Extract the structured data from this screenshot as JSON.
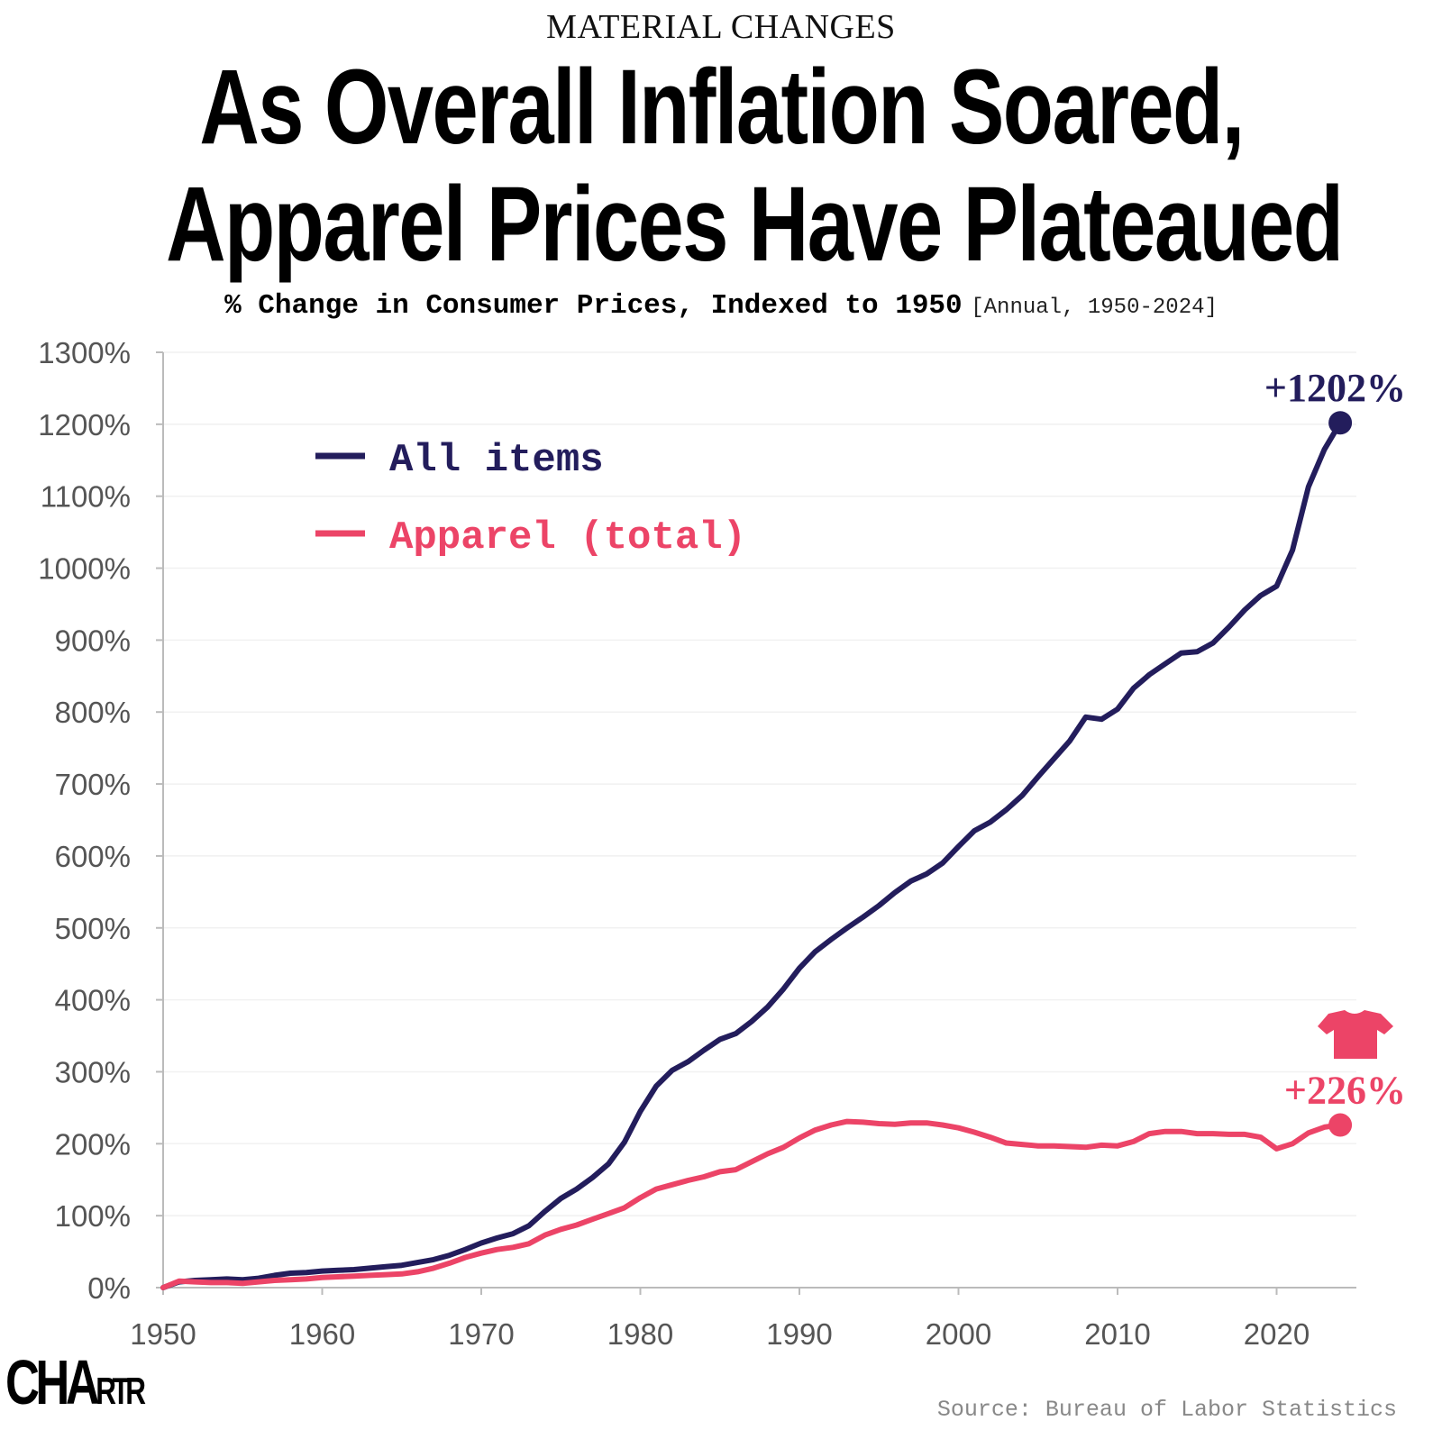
{
  "header": {
    "kicker": "MATERIAL CHANGES",
    "title_line1": "As Overall Inflation Soared,",
    "title_line2": "Apparel Prices Have Plateaued",
    "subtitle": "% Change in Consumer Prices, Indexed to 1950",
    "subtitle_note": "[Annual, 1950-2024]"
  },
  "footer": {
    "logo": "CHARTR",
    "source": "Source: Bureau of Labor Statistics"
  },
  "chart_data": {
    "type": "line",
    "xlim": [
      1950,
      2024
    ],
    "ylim": [
      0,
      1300
    ],
    "x_ticks": [
      1950,
      1960,
      1970,
      1980,
      1990,
      2000,
      2010,
      2020
    ],
    "y_ticks": [
      "0%",
      "100%",
      "200%",
      "300%",
      "400%",
      "500%",
      "600%",
      "700%",
      "800%",
      "900%",
      "1000%",
      "1100%",
      "1200%",
      "1300%"
    ],
    "grid": true,
    "legend_placement": "top-left",
    "x": [
      1950,
      1951,
      1952,
      1953,
      1954,
      1955,
      1956,
      1957,
      1958,
      1959,
      1960,
      1961,
      1962,
      1963,
      1964,
      1965,
      1966,
      1967,
      1968,
      1969,
      1970,
      1971,
      1972,
      1973,
      1974,
      1975,
      1976,
      1977,
      1978,
      1979,
      1980,
      1981,
      1982,
      1983,
      1984,
      1985,
      1986,
      1987,
      1988,
      1989,
      1990,
      1991,
      1992,
      1993,
      1994,
      1995,
      1996,
      1997,
      1998,
      1999,
      2000,
      2001,
      2002,
      2003,
      2004,
      2005,
      2006,
      2007,
      2008,
      2009,
      2010,
      2011,
      2012,
      2013,
      2014,
      2015,
      2016,
      2017,
      2018,
      2019,
      2020,
      2021,
      2022,
      2023,
      2024
    ],
    "series": [
      {
        "name": "All items",
        "color": "#231d5c",
        "end_label": "+1202%",
        "values": [
          0,
          8,
          10,
          11,
          12,
          11,
          13,
          17,
          20,
          21,
          23,
          24,
          25,
          27,
          29,
          31,
          35,
          39,
          45,
          53,
          62,
          69,
          75,
          86,
          106,
          124,
          137,
          153,
          172,
          202,
          245,
          280,
          302,
          314,
          330,
          345,
          353,
          370,
          390,
          415,
          444,
          467,
          484,
          500,
          515,
          531,
          549,
          565,
          575,
          590,
          613,
          635,
          647,
          664,
          684,
          710,
          735,
          760,
          793,
          790,
          804,
          833,
          852,
          867,
          882,
          884,
          896,
          918,
          942,
          962,
          975,
          1025,
          1113,
          1165,
          1202
        ]
      },
      {
        "name": "Apparel (total)",
        "color": "#ec4467",
        "end_label": "+226%",
        "icon": "t-shirt-icon",
        "values": [
          0,
          9,
          8,
          7,
          7,
          6,
          8,
          10,
          11,
          12,
          14,
          15,
          16,
          17,
          18,
          19,
          22,
          27,
          34,
          42,
          48,
          53,
          56,
          61,
          73,
          81,
          87,
          95,
          103,
          111,
          125,
          137,
          143,
          149,
          154,
          161,
          164,
          175,
          186,
          195,
          208,
          219,
          226,
          231,
          230,
          228,
          227,
          229,
          229,
          226,
          222,
          216,
          209,
          201,
          199,
          197,
          197,
          196,
          195,
          198,
          197,
          203,
          214,
          217,
          217,
          214,
          214,
          213,
          213,
          209,
          193,
          200,
          215,
          223,
          226
        ]
      }
    ]
  }
}
